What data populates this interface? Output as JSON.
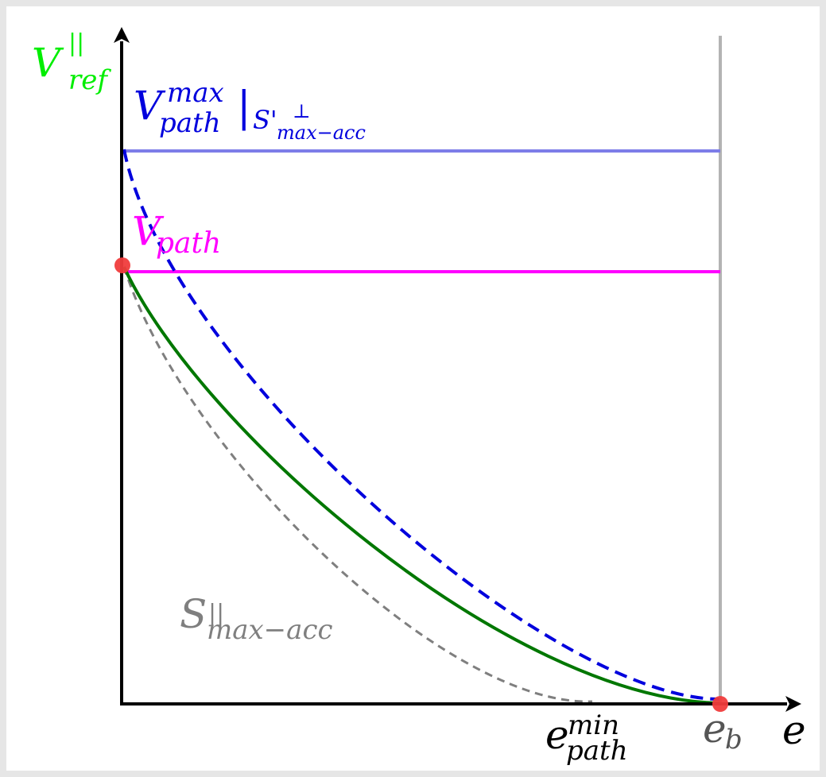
{
  "labels": {
    "y_axis": {
      "main": "V",
      "sup": "||",
      "sub": "ref"
    },
    "x_axis": "e",
    "vpath_max": {
      "main": "V",
      "sup": "max",
      "sub": "path",
      "bar": "|",
      "sub2_main": "S'",
      "sub2_sup": "⊥",
      "sub2_sub": "max−acc"
    },
    "vpath": {
      "main": "V",
      "sub": "path"
    },
    "s_max_acc": {
      "main": "S",
      "sup": "||",
      "sub": "max−acc"
    },
    "e_path_min": {
      "main": "e",
      "sup": "min",
      "sub": "path"
    },
    "e_b": {
      "main": "e",
      "sub": "b"
    }
  },
  "colors": {
    "axis": "#000000",
    "y_label": "#00ee00",
    "vpath_max": "#0000dd",
    "vpath_max_line": "#7d7de8",
    "vpath": "#ff00ff",
    "green_curve": "#007700",
    "gray_curve": "#7f7f7f",
    "vertical_line": "#b3b3b3",
    "points": "#f03c3c"
  }
}
